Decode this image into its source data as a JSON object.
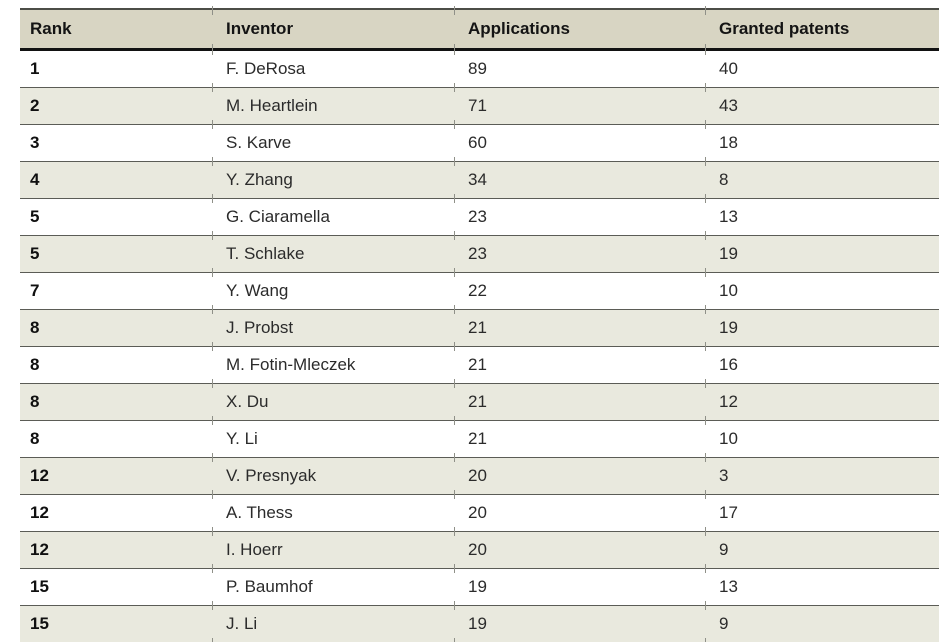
{
  "table": {
    "columns": [
      {
        "key": "rank",
        "label": "Rank"
      },
      {
        "key": "name",
        "label": "Inventor"
      },
      {
        "key": "apps",
        "label": "Applications"
      },
      {
        "key": "granted",
        "label": "Granted patents"
      }
    ],
    "rows": [
      {
        "rank": "1",
        "name": "F. DeRosa",
        "apps": "89",
        "granted": "40"
      },
      {
        "rank": "2",
        "name": "M. Heartlein",
        "apps": "71",
        "granted": "43"
      },
      {
        "rank": "3",
        "name": "S. Karve",
        "apps": "60",
        "granted": "18"
      },
      {
        "rank": "4",
        "name": "Y. Zhang",
        "apps": "34",
        "granted": "8"
      },
      {
        "rank": "5",
        "name": "G. Ciaramella",
        "apps": "23",
        "granted": "13"
      },
      {
        "rank": "5",
        "name": "T. Schlake",
        "apps": "23",
        "granted": "19"
      },
      {
        "rank": "7",
        "name": "Y. Wang",
        "apps": "22",
        "granted": "10"
      },
      {
        "rank": "8",
        "name": "J. Probst",
        "apps": "21",
        "granted": "19"
      },
      {
        "rank": "8",
        "name": "M. Fotin-Mleczek",
        "apps": "21",
        "granted": "16"
      },
      {
        "rank": "8",
        "name": "X. Du",
        "apps": "21",
        "granted": "12"
      },
      {
        "rank": "8",
        "name": "Y. Li",
        "apps": "21",
        "granted": "10"
      },
      {
        "rank": "12",
        "name": "V. Presnyak",
        "apps": "20",
        "granted": "3"
      },
      {
        "rank": "12",
        "name": "A. Thess",
        "apps": "20",
        "granted": "17"
      },
      {
        "rank": "12",
        "name": "I. Hoerr",
        "apps": "20",
        "granted": "9"
      },
      {
        "rank": "15",
        "name": "P. Baumhof",
        "apps": "19",
        "granted": "13"
      },
      {
        "rank": "15",
        "name": "J. Li",
        "apps": "19",
        "granted": "9"
      }
    ],
    "colors": {
      "header_bg": "#d8d5c3",
      "row_shaded_bg": "#e9e9de",
      "rule_dark": "#121212",
      "rule_gray": "#5b5c56"
    }
  }
}
